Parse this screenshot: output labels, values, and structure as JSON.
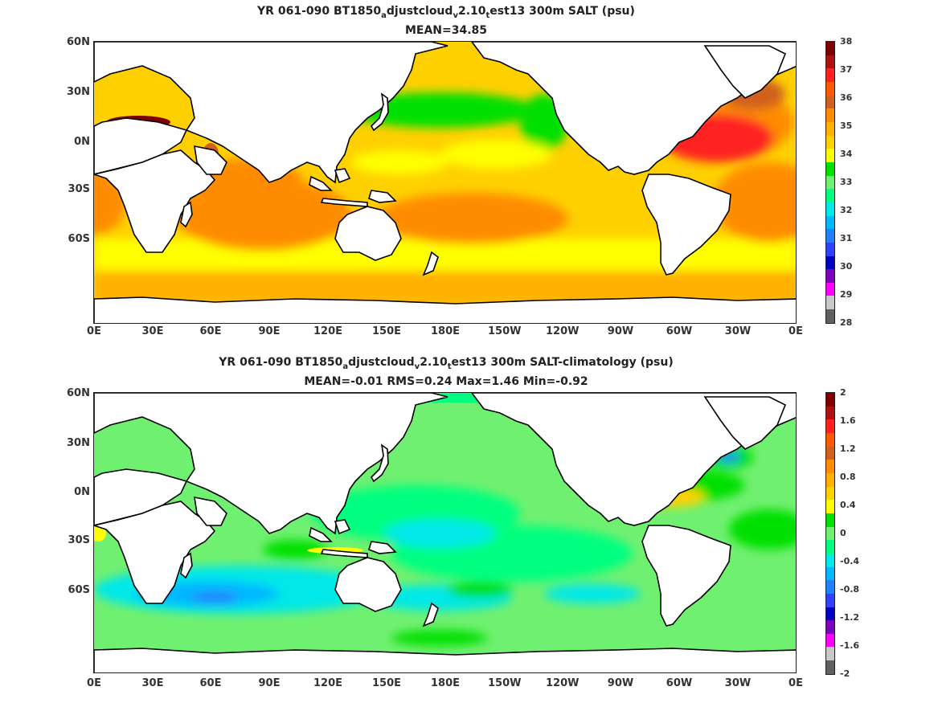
{
  "top": {
    "title_parts": [
      "YR 061-090 BT1850",
      "a",
      "djustcloud",
      "v",
      "2.10",
      "t",
      "est13 300m SALT (psu)"
    ],
    "stats": "MEAN=34.85",
    "colorbar": {
      "labels": [
        "38",
        "37",
        "36",
        "35",
        "34",
        "33",
        "32",
        "31",
        "30",
        "29",
        "28"
      ],
      "colors": [
        "#800000",
        "#b01010",
        "#ff2020",
        "#ff5a00",
        "#d0601e",
        "#ff8c00",
        "#ffb000",
        "#ffd000",
        "#ffff00",
        "#00e000",
        "#70f070",
        "#00ff80",
        "#00e8e8",
        "#00b8ff",
        "#2080ff",
        "#3040ff",
        "#0000c0",
        "#8000c0",
        "#ff00ff",
        "#c8c8c8",
        "#606060"
      ]
    }
  },
  "bottom": {
    "title_parts": [
      "YR 061-090 BT1850",
      "a",
      "djustcloud",
      "v",
      "2.10",
      "t",
      "est13 300m SALT-climatology (psu)"
    ],
    "stats": "MEAN=-0.01   RMS=0.24   Max=1.46   Min=-0.92",
    "colorbar": {
      "labels": [
        "2",
        "1.6",
        "1.2",
        "0.8",
        "0.4",
        "0",
        "-0.4",
        "-0.8",
        "-1.2",
        "-1.6",
        "-2"
      ],
      "colors": [
        "#800000",
        "#b01010",
        "#ff2020",
        "#ff5a00",
        "#d0601e",
        "#ff8c00",
        "#ffb000",
        "#ffd000",
        "#ffff00",
        "#00e000",
        "#70f070",
        "#00ff80",
        "#00e8e8",
        "#00b8ff",
        "#2080ff",
        "#3040ff",
        "#0000c0",
        "#8000c0",
        "#ff00ff",
        "#c8c8c8",
        "#606060"
      ]
    }
  },
  "axes": {
    "lat_labels": [
      "60N",
      "30N",
      "0N",
      "30S",
      "60S"
    ],
    "lon_labels": [
      "0E",
      "30E",
      "60E",
      "90E",
      "120E",
      "150E",
      "180E",
      "150W",
      "120W",
      "90W",
      "60W",
      "30W",
      "0E"
    ]
  },
  "palette": {
    "land": "#ffffff",
    "coast": "#000000",
    "salinity_base": "#ffd000",
    "salinity_high": "#ff8c00",
    "salinity_atlantic": "#ff2020",
    "salinity_med": "#800000",
    "salinity_fresh": "#00e000",
    "anomaly_base": "#70f070",
    "anomaly_neg": "#00e8e8",
    "anomaly_strong_neg": "#2080ff",
    "anomaly_pos": "#00e000",
    "anomaly_hot": "#ffd000"
  }
}
